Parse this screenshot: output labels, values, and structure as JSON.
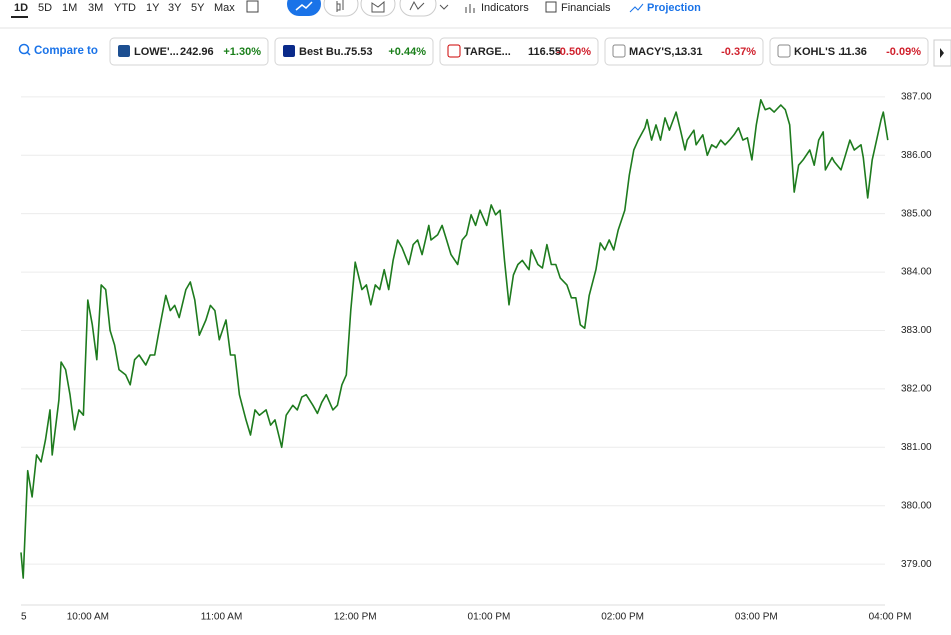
{
  "toolbar": {
    "ranges": [
      "1D",
      "5D",
      "1M",
      "3M",
      "YTD",
      "1Y",
      "3Y",
      "5Y",
      "Max"
    ],
    "tools": [
      "Indicators",
      "Financials",
      "Projection"
    ]
  },
  "compare": {
    "label": "Compare to",
    "tickers": [
      {
        "name": "LOWE'...",
        "price": "242.96",
        "change": "+1.30%",
        "color": "#1a7f1a"
      },
      {
        "name": "Best Bu...",
        "price": "75.53",
        "change": "+0.44%",
        "color": "#1a7f1a"
      },
      {
        "name": "TARGE...",
        "price": "116.55",
        "change": "-0.50%",
        "color": "#d0212d"
      },
      {
        "name": "MACY'S,...",
        "price": "13.31",
        "change": "-0.37%",
        "color": "#d0212d"
      },
      {
        "name": "KOHL'S ...",
        "price": "11.36",
        "change": "-0.09%",
        "color": "#d0212d"
      }
    ]
  },
  "chart_data": {
    "type": "line",
    "color": "#1e7b1e",
    "x": [
      0,
      1,
      3,
      5,
      7,
      9,
      11,
      13,
      14,
      17,
      18,
      20,
      22,
      24,
      26,
      28,
      30,
      32,
      34,
      36,
      38,
      40,
      42,
      44,
      47,
      49,
      51,
      53,
      56,
      58,
      60,
      62,
      65,
      67,
      69,
      71,
      74,
      76,
      78,
      80,
      83,
      85,
      87,
      89,
      92,
      94,
      96,
      98,
      101,
      103,
      105,
      107,
      110,
      112,
      114,
      117,
      119,
      122,
      124,
      126,
      128,
      131,
      133,
      135,
      137,
      140,
      142,
      144,
      146,
      148,
      150,
      153,
      155,
      157,
      159,
      161,
      163,
      165,
      167,
      169,
      171,
      174,
      176,
      178,
      180,
      183,
      184,
      187,
      189,
      191,
      193,
      196,
      198,
      200,
      202,
      204,
      206,
      209,
      211,
      213,
      215,
      217,
      219,
      221,
      223,
      225,
      228,
      229,
      232,
      234,
      236,
      238,
      240,
      242,
      245,
      247,
      249,
      251,
      253,
      255,
      258,
      260,
      262,
      264,
      266,
      268,
      271,
      273,
      275,
      277,
      280,
      281,
      283,
      285,
      287,
      289,
      291,
      294,
      296,
      298,
      299,
      302,
      303,
      306,
      308,
      310,
      312,
      314,
      316,
      318,
      320,
      322,
      324,
      326,
      328,
      330,
      332,
      334,
      336,
      338,
      341,
      343,
      345,
      347,
      349,
      351,
      354,
      356,
      358,
      360,
      361,
      364,
      365,
      368,
      370,
      372,
      374,
      377,
      378,
      380,
      382,
      384,
      386,
      387,
      389
    ],
    "values": [
      379.2,
      378.76,
      380.6,
      380.15,
      380.87,
      380.75,
      381.13,
      381.64,
      380.87,
      381.81,
      382.46,
      382.33,
      381.9,
      381.3,
      381.64,
      381.55,
      383.52,
      383.1,
      382.5,
      383.78,
      383.7,
      383.0,
      382.75,
      382.33,
      382.24,
      382.07,
      382.5,
      382.58,
      382.41,
      382.58,
      382.58,
      383.0,
      383.6,
      383.34,
      383.43,
      383.22,
      383.7,
      383.83,
      383.52,
      382.92,
      383.18,
      383.43,
      383.34,
      382.84,
      383.18,
      382.58,
      382.58,
      381.9,
      381.47,
      381.21,
      381.64,
      381.55,
      381.64,
      381.38,
      381.47,
      381.0,
      381.55,
      381.72,
      381.64,
      381.86,
      381.9,
      381.72,
      381.58,
      381.77,
      381.9,
      381.64,
      381.72,
      382.07,
      382.24,
      383.35,
      384.17,
      383.7,
      383.78,
      383.44,
      383.78,
      383.7,
      384.04,
      383.7,
      384.2,
      384.55,
      384.42,
      384.13,
      384.47,
      384.55,
      384.3,
      384.8,
      384.55,
      384.64,
      384.8,
      384.55,
      384.3,
      384.13,
      384.55,
      384.64,
      384.98,
      384.8,
      385.06,
      384.8,
      385.15,
      384.98,
      385.06,
      384.2,
      383.44,
      383.95,
      384.13,
      384.2,
      384.04,
      384.38,
      384.13,
      384.07,
      384.47,
      384.13,
      384.13,
      383.9,
      383.78,
      383.56,
      383.56,
      383.1,
      383.04,
      383.6,
      384.04,
      384.5,
      384.38,
      384.55,
      384.38,
      384.72,
      385.06,
      385.66,
      386.09,
      386.26,
      386.47,
      386.61,
      386.26,
      386.52,
      386.26,
      386.64,
      386.43,
      386.74,
      386.43,
      386.09,
      386.26,
      386.43,
      386.18,
      386.35,
      386.0,
      386.18,
      386.13,
      386.26,
      386.18,
      386.26,
      386.35,
      386.47,
      386.26,
      386.3,
      385.92,
      386.52,
      386.95,
      386.78,
      386.81,
      386.74,
      386.86,
      386.78,
      386.52,
      385.37,
      385.83,
      385.92,
      386.09,
      385.83,
      386.26,
      386.4,
      385.75,
      385.96,
      385.89,
      385.75,
      386.0,
      386.26,
      386.09,
      386.18,
      385.96,
      385.27,
      385.92,
      386.26,
      386.61,
      386.74,
      386.26
    ],
    "xlim": [
      0,
      390
    ],
    "xticks": [
      {
        "value": 0,
        "label": "5"
      },
      {
        "value": 30,
        "label": "10:00 AM"
      },
      {
        "value": 90,
        "label": "11:00 AM"
      },
      {
        "value": 150,
        "label": "12:00 PM"
      },
      {
        "value": 210,
        "label": "01:00 PM"
      },
      {
        "value": 270,
        "label": "02:00 PM"
      },
      {
        "value": 330,
        "label": "03:00 PM"
      },
      {
        "value": 390,
        "label": "04:00 PM"
      }
    ],
    "ylim": [
      378.3,
      387.46
    ],
    "yticks": [
      {
        "value": 379,
        "label": "379.00"
      },
      {
        "value": 380,
        "label": "380.00"
      },
      {
        "value": 381,
        "label": "381.00"
      },
      {
        "value": 382,
        "label": "382.00"
      },
      {
        "value": 383,
        "label": "383.00"
      },
      {
        "value": 384,
        "label": "384.00"
      },
      {
        "value": 385,
        "label": "385.00"
      },
      {
        "value": 386,
        "label": "386.00"
      },
      {
        "value": 387,
        "label": "387.00"
      }
    ],
    "grid": true
  }
}
